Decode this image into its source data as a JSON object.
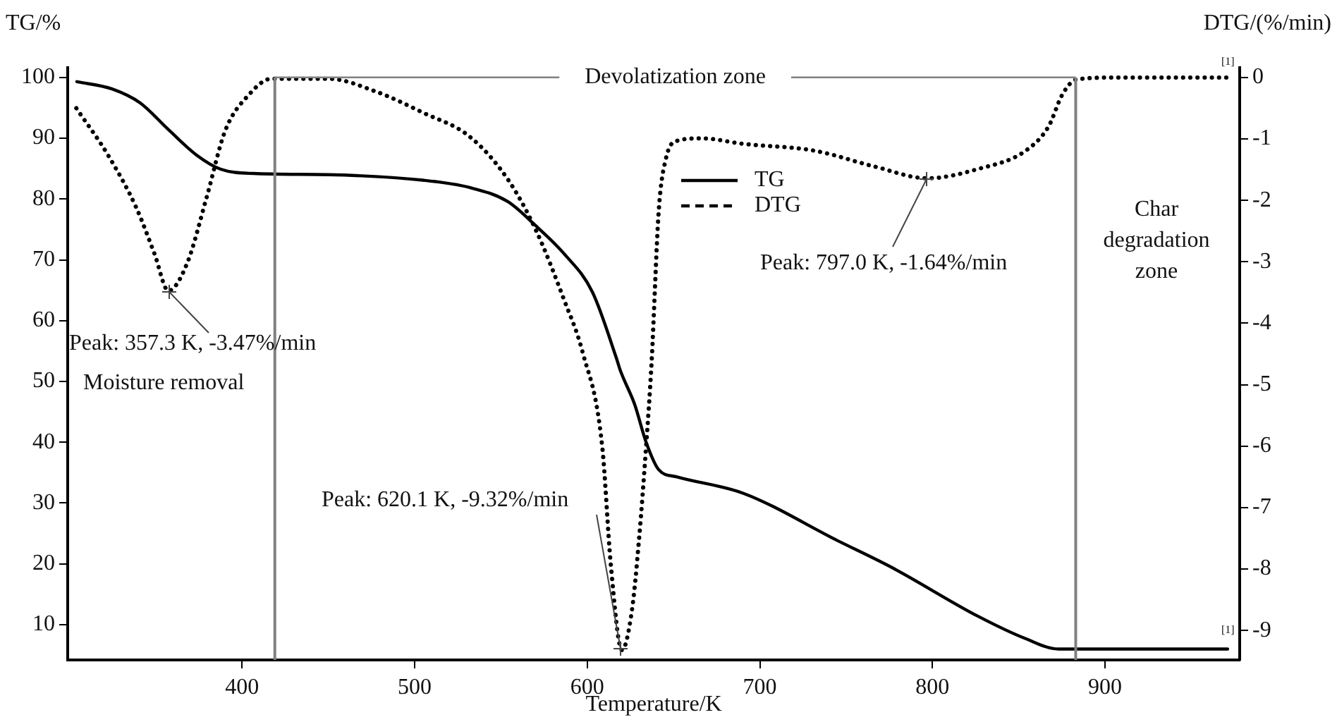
{
  "chart_data": {
    "type": "line",
    "xlabel": "Temperature/K",
    "ylabel": "TG/%",
    "y2label": "DTG/(%/min)",
    "xlim": [
      299,
      978
    ],
    "xticks": [
      400,
      500,
      600,
      700,
      800,
      900
    ],
    "ylim": [
      4.2,
      101.6
    ],
    "yticks": [
      10,
      20,
      30,
      40,
      50,
      60,
      70,
      80,
      90,
      100
    ],
    "y2lim": [
      -9.48,
      0.16
    ],
    "y2ticks": [
      0,
      -1,
      -2,
      -3,
      -4,
      -5,
      -6,
      -7,
      -8,
      -9
    ],
    "grid": false,
    "legend": "top",
    "marker": "none",
    "series": [
      {
        "name": "TG",
        "color": "#000000",
        "line_style": "solid",
        "x": [
          304.3,
          324.7,
          341,
          357.4,
          373.8,
          387.7,
          406.5,
          450,
          504.7,
          531.8,
          553.8,
          570.2,
          586.6,
          603,
          616.7,
          619.3,
          627.5,
          634,
          641.4,
          652,
          690.5,
          744.5,
          777.2,
          826.3,
          854,
          873,
          971
        ],
        "values": [
          99.3,
          98.1,
          95.8,
          91.4,
          87.2,
          84.9,
          84.2,
          84,
          83.1,
          81.9,
          79.6,
          75.6,
          71,
          64.7,
          54,
          51.7,
          46.2,
          40.1,
          35.5,
          34.3,
          31.6,
          23.9,
          19.3,
          11.4,
          7.7,
          6,
          6
        ]
      },
      {
        "name": "DTG",
        "color": "#000000",
        "line_style": "dotted",
        "axis": "y2",
        "x": [
          304,
          322.3,
          338.6,
          349.3,
          357.3,
          368.1,
          379.5,
          390.2,
          404,
          417,
          450,
          477.7,
          504.7,
          531.8,
          553.8,
          570.2,
          586.6,
          597.3,
          608.7,
          613.6,
          620.1,
          625.9,
          630,
          634.1,
          637.3,
          641.4,
          645.5,
          652,
          666,
          690.5,
          731.4,
          766.6,
          797,
          826.3,
          854.1,
          867.2,
          875.4,
          883.6,
          908.2,
          971
        ],
        "values": [
          -0.5,
          -1.26,
          -2.11,
          -2.87,
          -3.47,
          -3.03,
          -1.95,
          -0.87,
          -0.28,
          -0.02,
          -0.02,
          -0.23,
          -0.57,
          -0.96,
          -1.65,
          -2.48,
          -3.62,
          -4.47,
          -6.01,
          -7.91,
          -9.32,
          -8.67,
          -7.52,
          -6.01,
          -4.63,
          -2.18,
          -1.33,
          -1.03,
          -0.99,
          -1.08,
          -1.19,
          -1.45,
          -1.64,
          -1.49,
          -1.19,
          -0.8,
          -0.27,
          -0.03,
          0,
          0
        ]
      }
    ],
    "ref_lines": [
      {
        "axis": "x",
        "value": 419,
        "color": "#808080"
      },
      {
        "axis": "x",
        "value": 883,
        "color": "#808080"
      },
      {
        "axis": "y",
        "value": 100,
        "label": "Devolatization zone",
        "color": "#808080"
      }
    ],
    "annotations": [
      "Peak: 357.3 K, -3.47%/min",
      "Peak: 620.1 K, -9.32%/min",
      "Peak: 797.0 K, -1.64%/min",
      "[1]",
      "[1]",
      "Moisture removal",
      "Char degradation zone"
    ]
  }
}
